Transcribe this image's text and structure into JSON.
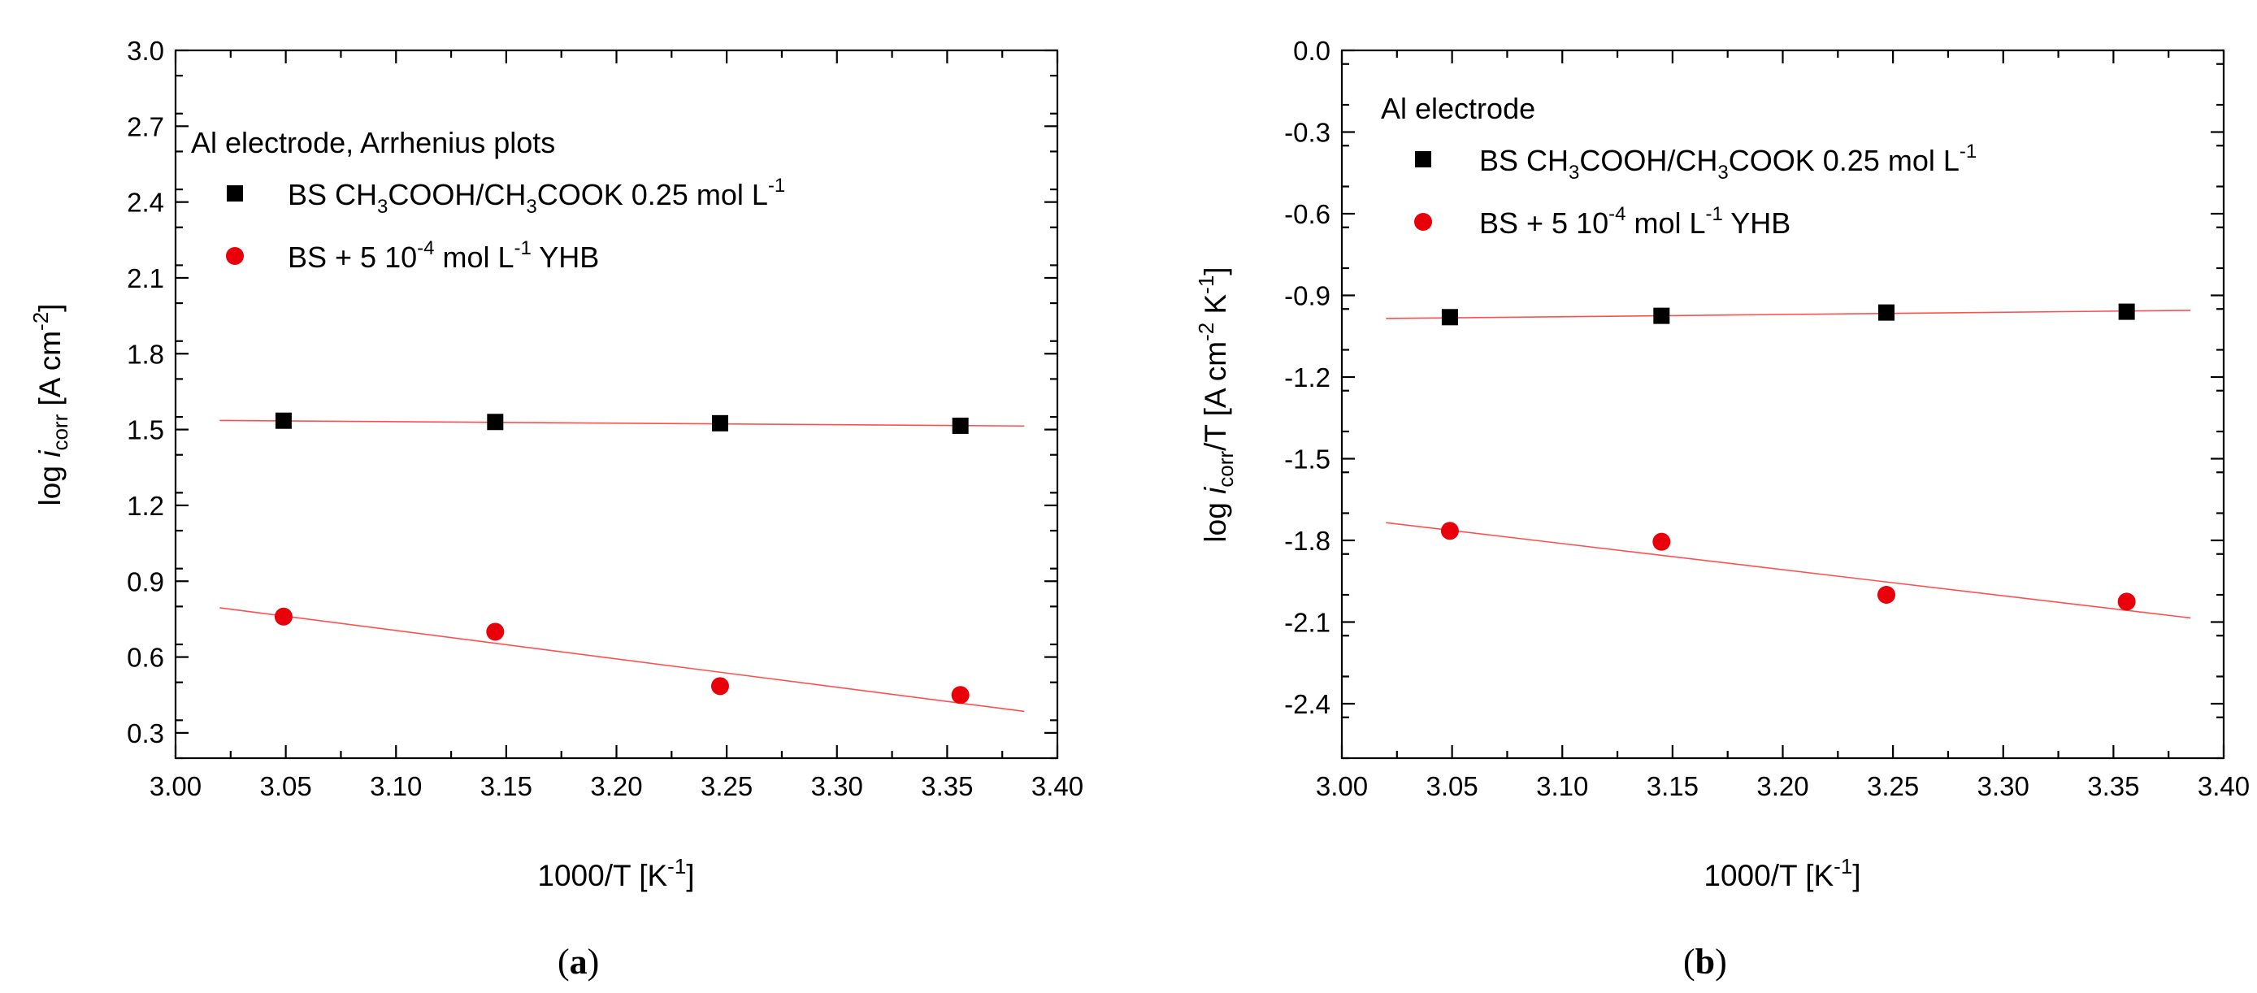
{
  "colors": {
    "black_series": "#000000",
    "red_series": "#e8000b",
    "fit_line": "#ff5050"
  },
  "chart_data": [
    {
      "type": "scatter",
      "panel_label": "a",
      "annotation": "Al electrode, Arrhenius plots",
      "xlabel": {
        "main": "1000/T [K",
        "sup": "-1",
        "end": "]"
      },
      "ylabel": {
        "pre": "log ",
        "i": "i",
        "sub": "corr",
        "mid": " [A cm",
        "sup": "-2",
        "end": "]"
      },
      "xlim": [
        3.0,
        3.4
      ],
      "ylim": [
        0.2,
        3.0
      ],
      "xticks": [
        "3.00",
        "3.05",
        "3.10",
        "3.15",
        "3.20",
        "3.25",
        "3.30",
        "3.35",
        "3.40"
      ],
      "yticks": [
        "0.3",
        "0.6",
        "0.9",
        "1.2",
        "1.5",
        "1.8",
        "2.1",
        "2.4",
        "2.7",
        "3.0"
      ],
      "series": [
        {
          "name": "BS CH3COOH/CH3COOK 0.25 mol L-1",
          "legend": {
            "a": "BS CH",
            "s1": "3",
            "b": "COOH/CH",
            "s2": "3",
            "c": "COOK 0.25 mol L",
            "sup": "-1"
          },
          "marker": "square",
          "x": [
            3.049,
            3.145,
            3.247,
            3.356
          ],
          "y": [
            1.535,
            1.53,
            1.525,
            1.515
          ],
          "fit": {
            "x": [
              3.02,
              3.385
            ],
            "y": [
              1.536,
              1.514
            ]
          }
        },
        {
          "name": "BS + 5 10-4 mol L-1 YHB",
          "legend": {
            "a": "BS + 5 10",
            "sup1": "-4",
            "b": " mol L",
            "sup2": "-1",
            "c": " YHB"
          },
          "marker": "circle",
          "x": [
            3.049,
            3.145,
            3.247,
            3.356
          ],
          "y": [
            0.76,
            0.7,
            0.485,
            0.45
          ],
          "fit": {
            "x": [
              3.02,
              3.385
            ],
            "y": [
              0.795,
              0.385
            ]
          }
        }
      ]
    },
    {
      "type": "scatter",
      "panel_label": "b",
      "annotation": "Al electrode",
      "xlabel": {
        "main": "1000/T [K",
        "sup": "-1",
        "end": "]"
      },
      "ylabel": {
        "pre": "log ",
        "i": "i",
        "sub": "corr",
        "mid": "/T [A cm",
        "sup": "-2",
        "mid2": " K",
        "sup2": "-1",
        "end": "]"
      },
      "xlim": [
        3.0,
        3.4
      ],
      "ylim": [
        -2.6,
        0.0
      ],
      "xticks": [
        "3.00",
        "3.05",
        "3.10",
        "3.15",
        "3.20",
        "3.25",
        "3.30",
        "3.35",
        "3.40"
      ],
      "yticks": [
        "0.0",
        "-0.3",
        "-0.6",
        "-0.9",
        "-1.2",
        "-1.5",
        "-1.8",
        "-2.1",
        "-2.4"
      ],
      "series": [
        {
          "name": "BS CH3COOH/CH3COOK 0.25 mol L-1",
          "legend": {
            "a": "BS CH",
            "s1": "3",
            "b": "COOH/CH",
            "s2": "3",
            "c": "COOK 0.25 mol L",
            "sup": "-1"
          },
          "marker": "square",
          "x": [
            3.049,
            3.145,
            3.247,
            3.356
          ],
          "y": [
            -0.98,
            -0.975,
            -0.963,
            -0.96
          ],
          "fit": {
            "x": [
              3.02,
              3.385
            ],
            "y": [
              -0.985,
              -0.955
            ]
          }
        },
        {
          "name": "BS + 5 10-4 mol L-1 YHB",
          "legend": {
            "a": "BS + 5 10",
            "sup1": "-4",
            "b": " mol L",
            "sup2": "-1",
            "c": " YHB"
          },
          "marker": "circle",
          "x": [
            3.049,
            3.145,
            3.247,
            3.356
          ],
          "y": [
            -1.765,
            -1.805,
            -2.0,
            -2.025
          ],
          "fit": {
            "x": [
              3.02,
              3.385
            ],
            "y": [
              -1.735,
              -2.085
            ]
          }
        }
      ]
    }
  ]
}
